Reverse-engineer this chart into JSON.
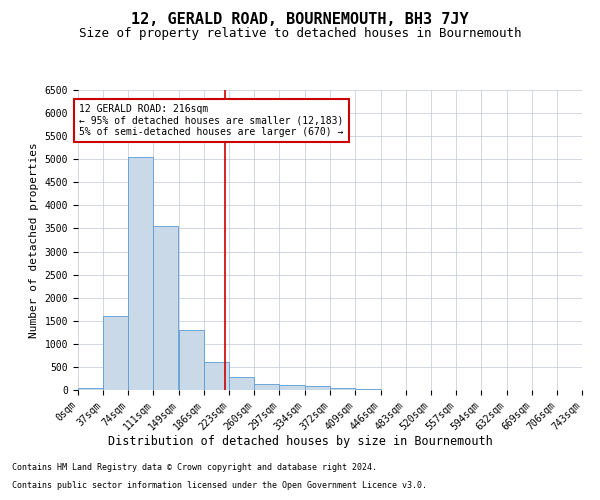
{
  "title": "12, GERALD ROAD, BOURNEMOUTH, BH3 7JY",
  "subtitle": "Size of property relative to detached houses in Bournemouth",
  "xlabel": "Distribution of detached houses by size in Bournemouth",
  "ylabel": "Number of detached properties",
  "footnote1": "Contains HM Land Registry data © Crown copyright and database right 2024.",
  "footnote2": "Contains public sector information licensed under the Open Government Licence v3.0.",
  "annotation_title": "12 GERALD ROAD: 216sqm",
  "annotation_line1": "← 95% of detached houses are smaller (12,183)",
  "annotation_line2": "5% of semi-detached houses are larger (670) →",
  "property_size": 216,
  "bin_edges": [
    0,
    37,
    74,
    111,
    149,
    186,
    223,
    260,
    297,
    334,
    372,
    409,
    446,
    483,
    520,
    557,
    594,
    632,
    669,
    706,
    743
  ],
  "bar_heights": [
    50,
    1600,
    5050,
    3550,
    1300,
    600,
    280,
    120,
    100,
    80,
    50,
    20,
    10,
    8,
    5,
    3,
    2,
    1,
    1,
    1
  ],
  "bar_color": "#c9d9e8",
  "bar_edge_color": "#5b9bd5",
  "vline_color": "#cc0000",
  "annotation_box_color": "#cc0000",
  "background_color": "#ffffff",
  "grid_color": "#c0c8d8",
  "ylim": [
    0,
    6500
  ],
  "yticks": [
    0,
    500,
    1000,
    1500,
    2000,
    2500,
    3000,
    3500,
    4000,
    4500,
    5000,
    5500,
    6000,
    6500
  ],
  "title_fontsize": 11,
  "subtitle_fontsize": 9,
  "xlabel_fontsize": 8.5,
  "ylabel_fontsize": 8,
  "tick_fontsize": 7,
  "annotation_fontsize": 7,
  "footnote_fontsize": 6
}
